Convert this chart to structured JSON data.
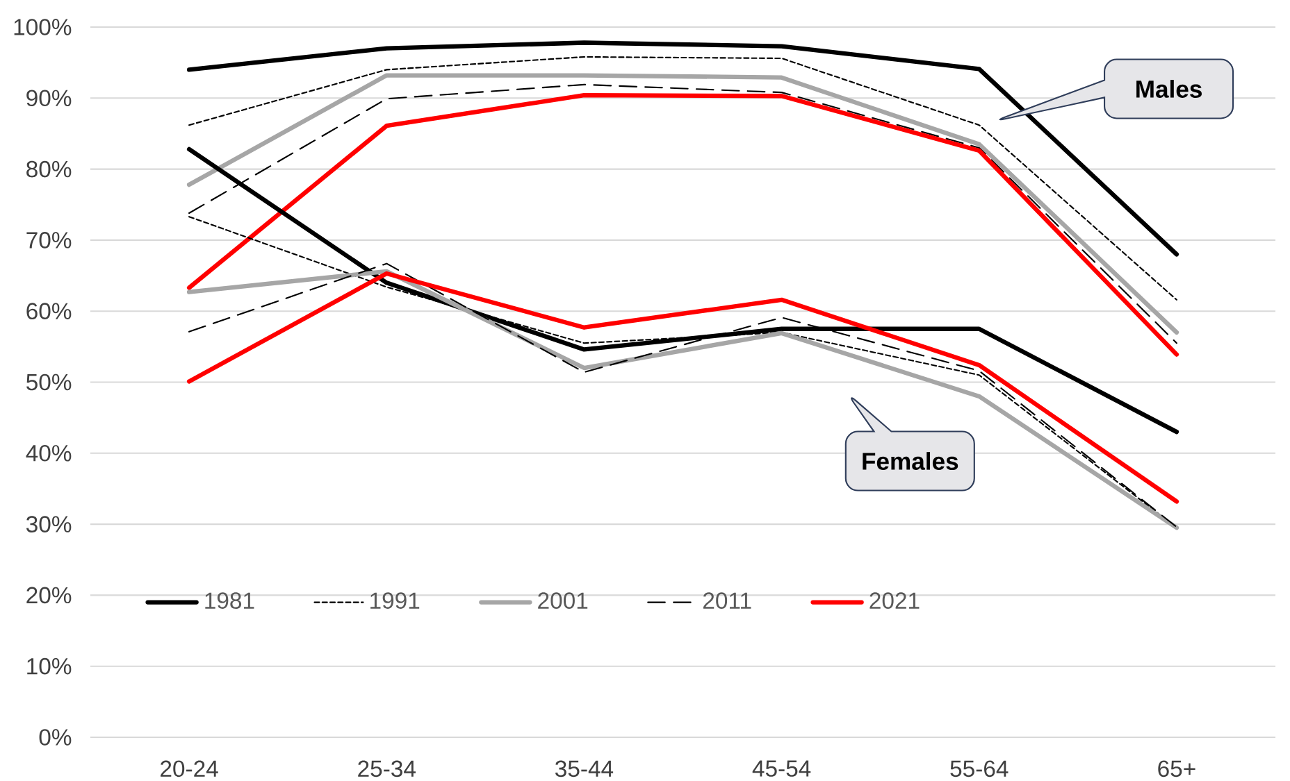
{
  "chart_data": {
    "type": "line",
    "categories": [
      "20-24",
      "25-34",
      "35-44",
      "45-54",
      "55-64",
      "65+"
    ],
    "series": [
      {
        "name": "1981",
        "color": "#000000",
        "line_style": "solid",
        "values": [
          94.0,
          97.0,
          97.8,
          97.3,
          94.1,
          68.0
        ]
      },
      {
        "name": "1991",
        "color": "#000000",
        "line_style": "dotted",
        "values": [
          86.2,
          94.0,
          95.8,
          95.6,
          86.2,
          61.6
        ]
      },
      {
        "name": "2001",
        "color": "#a6a6a6",
        "line_style": "solid",
        "values": [
          77.8,
          93.2,
          93.2,
          92.9,
          83.5,
          57.0
        ]
      },
      {
        "name": "2011",
        "color": "#000000",
        "line_style": "dashed",
        "values": [
          73.8,
          89.9,
          91.9,
          90.8,
          83.0,
          55.5
        ]
      },
      {
        "name": "2021",
        "color": "#ff0000",
        "line_style": "solid",
        "values": [
          63.3,
          86.1,
          90.4,
          90.3,
          82.6,
          53.9
        ]
      },
      {
        "color": "#000000",
        "line_style": "solid",
        "values": [
          82.8,
          64.0,
          54.6,
          57.5,
          57.5,
          43.0
        ]
      },
      {
        "color": "#000000",
        "line_style": "dotted",
        "values": [
          73.3,
          63.4,
          55.5,
          57.0,
          51.0,
          29.5
        ]
      },
      {
        "color": "#a6a6a6",
        "line_style": "solid",
        "values": [
          62.7,
          65.6,
          52.0,
          56.9,
          48.0,
          29.5
        ]
      },
      {
        "color": "#000000",
        "line_style": "dashed",
        "values": [
          57.1,
          66.7,
          51.4,
          59.1,
          51.6,
          29.6
        ]
      },
      {
        "color": "#ff0000",
        "line_style": "solid",
        "values": [
          50.1,
          65.3,
          57.7,
          61.6,
          52.4,
          33.2
        ]
      }
    ],
    "ylim": [
      0,
      100
    ],
    "yticks": [
      {
        "value": 0,
        "label": "0%"
      },
      {
        "value": 10,
        "label": "10%"
      },
      {
        "value": 20,
        "label": "20%"
      },
      {
        "value": 30,
        "label": "30%"
      },
      {
        "value": 40,
        "label": "40%"
      },
      {
        "value": 50,
        "label": "50%"
      },
      {
        "value": 60,
        "label": "60%"
      },
      {
        "value": 70,
        "label": "70%"
      },
      {
        "value": 80,
        "label": "80%"
      },
      {
        "value": 90,
        "label": "90%"
      },
      {
        "value": 100,
        "label": "100%"
      }
    ],
    "grid": "y",
    "legend": "bottom left",
    "annotations": [
      "Males",
      "Females"
    ]
  }
}
